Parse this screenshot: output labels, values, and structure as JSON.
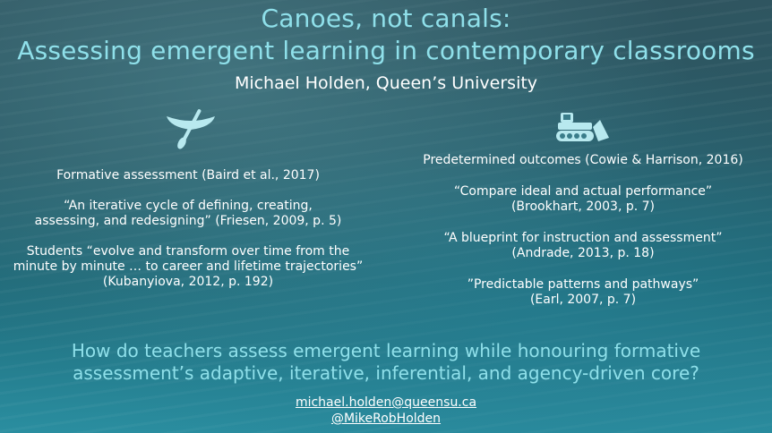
{
  "title": {
    "line1": "Canoes, not canals:",
    "line2": "Assessing emergent learning in contemporary classrooms",
    "color": "#8fe0ea"
  },
  "author": "Michael Holden, Queen’s University",
  "icons": {
    "left": "canoe-icon",
    "right": "bulldozer-icon"
  },
  "left_column": [
    "Formative assessment (Baird et al., 2017)",
    "“An iterative cycle of defining, creating,",
    "assessing, and redesigning” (Friesen, 2009, p. 5)",
    "Students “evolve and transform over time from the",
    "minute by minute … to career and lifetime trajectories”",
    "(Kubanyiova, 2012, p. 192)"
  ],
  "right_column": [
    "Predetermined outcomes (Cowie & Harrison, 2016)",
    "“Compare ideal and actual performance”",
    "(Brookhart, 2003, p. 7)",
    "“A blueprint for instruction and assessment”",
    "(Andrade, 2013, p. 18)",
    "”Predictable patterns and pathways”",
    "(Earl, 2007, p. 7)"
  ],
  "question": {
    "line1": "How do teachers assess emergent learning while honouring formative",
    "line2": "assessment’s adaptive, iterative, inferential, and agency-driven core?"
  },
  "contact": {
    "email": "michael.holden@queensu.ca",
    "handle": "@MikeRobHolden"
  }
}
